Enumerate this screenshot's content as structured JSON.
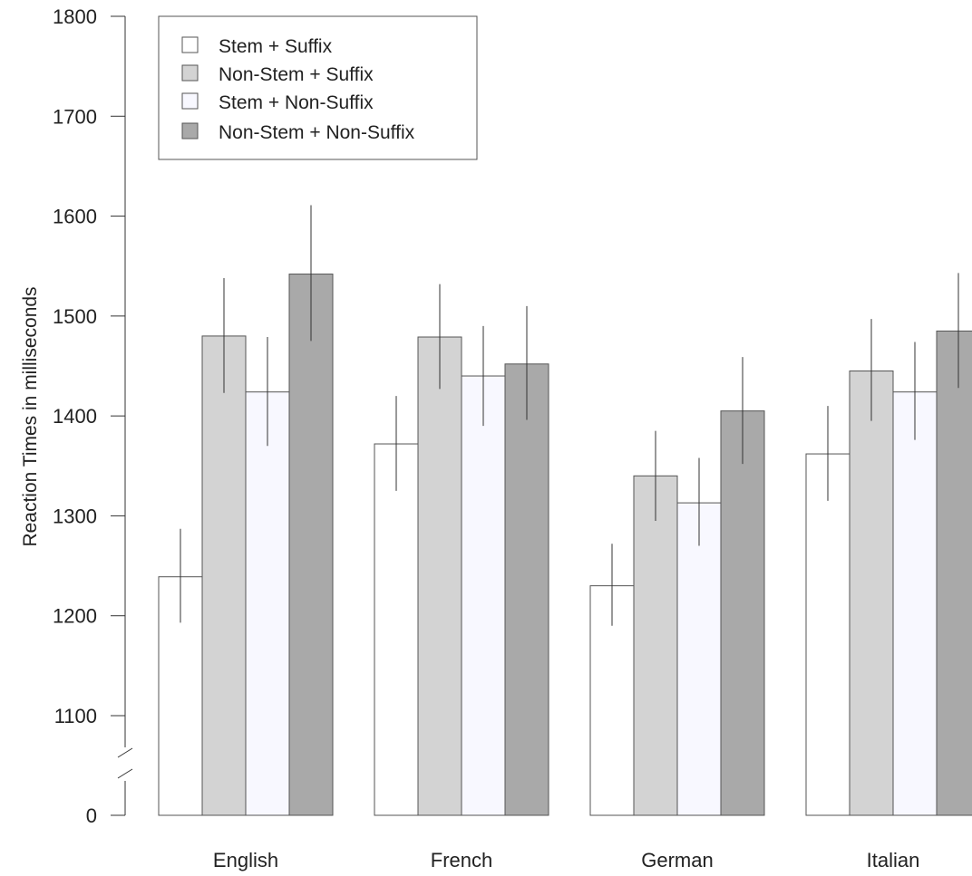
{
  "chart_data": {
    "type": "bar",
    "title": "",
    "xlabel": "",
    "ylabel": "Reaction Times in milliseconds",
    "categories": [
      "English",
      "French",
      "German",
      "Italian"
    ],
    "y_ticks": [
      "0",
      "1100",
      "1200",
      "1300",
      "1400",
      "1500",
      "1600",
      "1700",
      "1800"
    ],
    "ylim": [
      1000,
      1800
    ],
    "axis_break": true,
    "grid": false,
    "error_bars": true,
    "legend_position": "top-left",
    "series": [
      {
        "name": "Stem + Suffix",
        "color": "#ffffff",
        "values": [
          1239,
          1372,
          1230,
          1362
        ],
        "err_low": [
          1193,
          1325,
          1190,
          1315
        ],
        "err_high": [
          1287,
          1420,
          1272,
          1410
        ]
      },
      {
        "name": "Non-Stem + Suffix",
        "color": "#d3d3d3",
        "values": [
          1480,
          1479,
          1340,
          1445
        ],
        "err_low": [
          1423,
          1427,
          1295,
          1395
        ],
        "err_high": [
          1538,
          1532,
          1385,
          1497
        ]
      },
      {
        "name": "Stem + Non-Suffix",
        "color": "#f8f8ff",
        "values": [
          1424,
          1440,
          1313,
          1424
        ],
        "err_low": [
          1370,
          1390,
          1270,
          1376
        ],
        "err_high": [
          1479,
          1490,
          1358,
          1474
        ]
      },
      {
        "name": "Non-Stem + Non-Suffix",
        "color": "#a9a9a9",
        "values": [
          1542,
          1452,
          1405,
          1485
        ],
        "err_low": [
          1475,
          1396,
          1352,
          1428
        ],
        "err_high": [
          1611,
          1510,
          1459,
          1543
        ]
      }
    ]
  }
}
